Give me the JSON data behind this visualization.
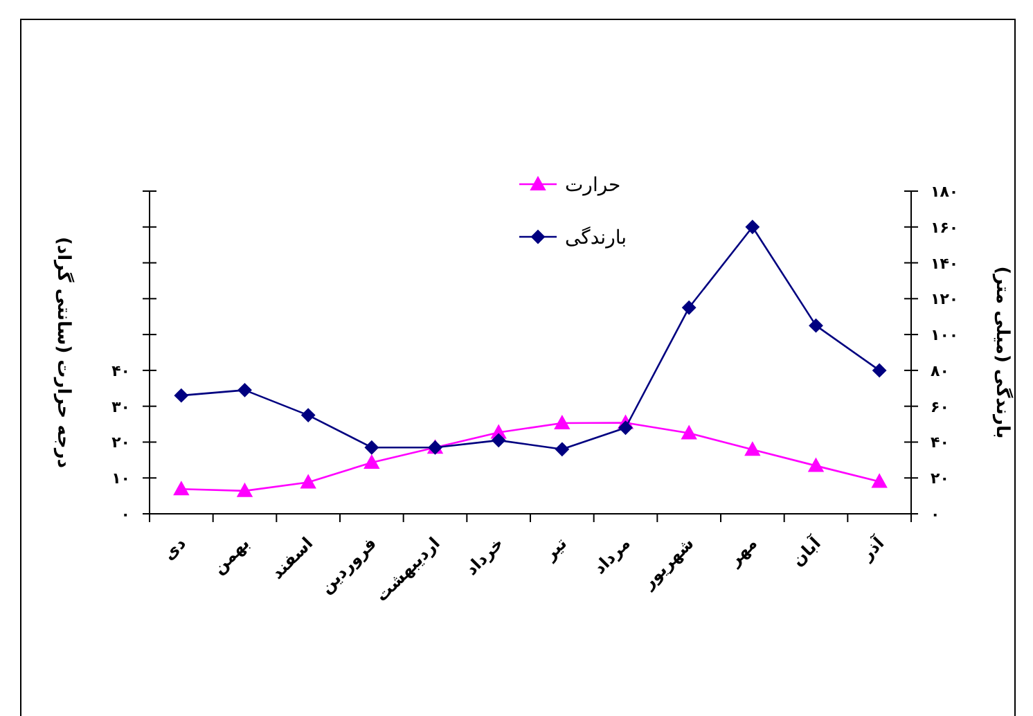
{
  "chart_data": {
    "type": "line",
    "categories": [
      "دی",
      "بهمن",
      "اسفند",
      "فروردین",
      "اردیبهشت",
      "خرداد",
      "تیر",
      "مرداد",
      "شهریور",
      "مهر",
      "آبان",
      "آذر"
    ],
    "series": [
      {
        "name": "حرارت",
        "color": "#ff00ff",
        "marker": "triangle",
        "axis": "y",
        "values": [
          6.9,
          6.4,
          8.8,
          14.3,
          18.5,
          22.7,
          25.3,
          25.4,
          22.5,
          17.9,
          13.4,
          9.0
        ]
      },
      {
        "name": "بارندگی",
        "color": "#000080",
        "marker": "diamond",
        "axis": "y2",
        "values": [
          66,
          69,
          55,
          37,
          37,
          41,
          36,
          48,
          115,
          160,
          105,
          80
        ]
      }
    ],
    "ylabel": "درجه حرارت (سانتی گراد)",
    "y2label": "بارندگی (میلی متر)",
    "ylim": [
      0,
      90
    ],
    "yticks": [
      {
        "value": 0,
        "label": "۰"
      },
      {
        "value": 10,
        "label": "۱۰"
      },
      {
        "value": 20,
        "label": "۲۰"
      },
      {
        "value": 30,
        "label": "۳۰"
      },
      {
        "value": 40,
        "label": "۴۰"
      },
      {
        "value": 50,
        "label": null
      },
      {
        "value": 60,
        "label": null
      },
      {
        "value": 70,
        "label": null
      },
      {
        "value": 80,
        "label": null
      },
      {
        "value": 90,
        "label": null
      }
    ],
    "y2lim": [
      0,
      180
    ],
    "y2ticks": [
      {
        "value": 0,
        "label": "۰"
      },
      {
        "value": 20,
        "label": "۲۰"
      },
      {
        "value": 40,
        "label": "۴۰"
      },
      {
        "value": 60,
        "label": "۶۰"
      },
      {
        "value": 80,
        "label": "۸۰"
      },
      {
        "value": 100,
        "label": "۱۰۰"
      },
      {
        "value": 120,
        "label": "۱۲۰"
      },
      {
        "value": 140,
        "label": "۱۴۰"
      },
      {
        "value": 160,
        "label": "۱۶۰"
      },
      {
        "value": 180,
        "label": "۱۸۰"
      }
    ],
    "legend": "top"
  }
}
